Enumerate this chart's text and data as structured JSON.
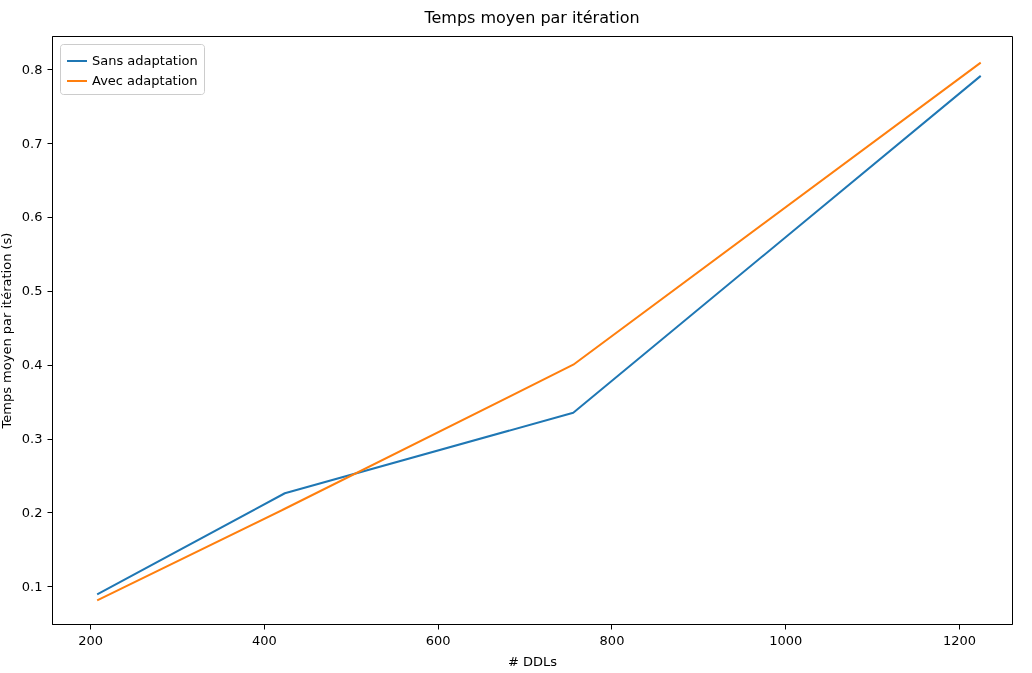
{
  "chart_data": {
    "type": "line",
    "title": "Temps moyen par itération",
    "xlabel": "# DDLs",
    "ylabel": "Temps moyen par itération (s)",
    "x": [
      208,
      424,
      756,
      1225
    ],
    "series": [
      {
        "name": "Sans adaptation",
        "color": "#1f77b4",
        "values": [
          0.089,
          0.226,
          0.335,
          0.791
        ]
      },
      {
        "name": "Avec adaptation",
        "color": "#ff7f0e",
        "values": [
          0.081,
          0.205,
          0.4,
          0.809
        ]
      }
    ],
    "xlim": [
      156,
      1261
    ],
    "xticks": [
      200,
      400,
      600,
      800,
      1000,
      1200
    ],
    "ylim": [
      0.049,
      0.845
    ],
    "yticks": [
      0.1,
      0.2,
      0.3,
      0.4,
      0.5,
      0.6,
      0.7,
      0.8
    ],
    "legend": "top left",
    "grid": false,
    "marker": "none",
    "line_style": "solid"
  }
}
